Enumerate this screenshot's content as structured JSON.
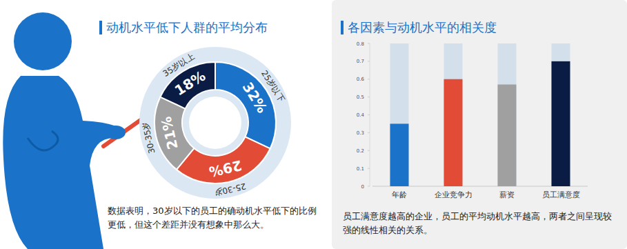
{
  "chart_data": [
    {
      "type": "pie",
      "title": "动机水平低下人群的平均分布",
      "categories": [
        "25岁以下",
        "25-30岁",
        "30-35岁",
        "35岁以上"
      ],
      "values": [
        32,
        29,
        21,
        18
      ],
      "value_labels": [
        "32%",
        "29%",
        "21%",
        "18%"
      ],
      "colors": [
        "#1a73c9",
        "#e24c36",
        "#a0a0a0",
        "#0b1c44"
      ],
      "data_labels": true,
      "annotation": "数据表明，30岁以下的员工的确动机水平低下的比例更低，但这个差距并没有想象中那么大。"
    },
    {
      "type": "bar",
      "title": "各因素与动机水平的相关度",
      "categories": [
        "年龄",
        "企业竞争力",
        "薪资",
        "员工满意度"
      ],
      "values": [
        0.35,
        0.6,
        0.57,
        0.7
      ],
      "colors": [
        "#1a73c9",
        "#e24c36",
        "#a0a0a0",
        "#0b1c44"
      ],
      "ylim": [
        0,
        0.8
      ],
      "yticks": [
        0,
        0.1,
        0.2,
        0.3,
        0.4,
        0.5,
        0.6,
        0.7,
        0.8
      ],
      "grid": false,
      "annotation": "员工满意度越高的企业，员工的平均动机水平越高，两者之间呈现较强的线性相关的关系。"
    }
  ]
}
